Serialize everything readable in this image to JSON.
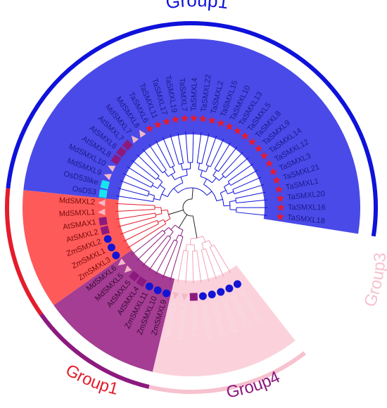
{
  "colors": {
    "g1_blue": "#4a4ae8",
    "g1_blue_arc": "#0f12d9",
    "g1_red": "#ff5a5a",
    "g1_red_arc": "#e41c2b",
    "g4_purple": "#a43d93",
    "g4_arc": "#8c1a7e",
    "g3_pink": "#fbd2dc",
    "g3_arc": "#f7c2cf",
    "star": "#e8192c",
    "triangle": "#f4b8c6",
    "square": "#8c1a7e",
    "circle": "#1414d4",
    "cyan": "#18e4f0"
  },
  "group_labels": {
    "top": "Group1",
    "bottom_left": "Group1",
    "bottom": "Group4",
    "right": "Group3"
  },
  "leaves": [
    {
      "name": "TaSMXL18",
      "marker": "star"
    },
    {
      "name": "TaSMXL16",
      "marker": "star"
    },
    {
      "name": "TaSMXL20",
      "marker": "star"
    },
    {
      "name": "TaSMXL1",
      "marker": "star"
    },
    {
      "name": "TaSMXL21",
      "marker": "star"
    },
    {
      "name": "TaSMXL3",
      "marker": "star"
    },
    {
      "name": "TaSMXL12",
      "marker": "star"
    },
    {
      "name": "TaSMXL14",
      "marker": "star"
    },
    {
      "name": "TaSMXL9",
      "marker": "star"
    },
    {
      "name": "TaSMXL8",
      "marker": "star"
    },
    {
      "name": "TaSMXL5",
      "marker": "star"
    },
    {
      "name": "TaSMXL13",
      "marker": "star"
    },
    {
      "name": "TaSMXL10",
      "marker": "star"
    },
    {
      "name": "TaSMXL15",
      "marker": "star"
    },
    {
      "name": "TaSMXL2",
      "marker": "star"
    },
    {
      "name": "TaSMXL22",
      "marker": "star"
    },
    {
      "name": "TaSMXL4",
      "marker": "star"
    },
    {
      "name": "TaSMXL7",
      "marker": "star"
    },
    {
      "name": "TaSMXL19",
      "marker": "star"
    },
    {
      "name": "TaSMXL17",
      "marker": "star"
    },
    {
      "name": "TaSMXL11",
      "marker": "star"
    },
    {
      "name": "TaSMXL6",
      "marker": "star"
    },
    {
      "name": "MdSMXL8",
      "marker": "triangle"
    },
    {
      "name": "MdSMXL7",
      "marker": "triangle"
    },
    {
      "name": "AtSMXL7",
      "marker": "square"
    },
    {
      "name": "AtSMXL6",
      "marker": "square"
    },
    {
      "name": "AtSMXL8",
      "marker": "square"
    },
    {
      "name": "MdSMXL10",
      "marker": "triangle"
    },
    {
      "name": "MdSMXL9",
      "marker": "triangle"
    },
    {
      "name": "OsD53like",
      "marker": "cyan"
    },
    {
      "name": "OsD53",
      "marker": "cyan"
    },
    {
      "name": "MdSMXL2",
      "marker": "triangle"
    },
    {
      "name": "MdSMXL1",
      "marker": "triangle"
    },
    {
      "name": "AtSMAX1",
      "marker": "square"
    },
    {
      "name": "AtSMXL2",
      "marker": "square"
    },
    {
      "name": "ZmSMXL2",
      "marker": "circle"
    },
    {
      "name": "ZmSMXL1",
      "marker": "circle"
    },
    {
      "name": "ZmSMXL3",
      "marker": "circle"
    },
    {
      "name": "MdSMXL6",
      "marker": "triangle"
    },
    {
      "name": "MdSMXL5",
      "marker": "triangle"
    },
    {
      "name": "AtSMXL5",
      "marker": "square"
    },
    {
      "name": "AtSMXL4",
      "marker": "square"
    },
    {
      "name": "ZmSMXL11",
      "marker": "circle"
    },
    {
      "name": "ZmSMXL10",
      "marker": "circle"
    },
    {
      "name": "ZmSMXL9",
      "marker": "circle"
    },
    {
      "name": "MdSMXL4",
      "marker": "triangle"
    },
    {
      "name": "MdSMXL3",
      "marker": "triangle"
    },
    {
      "name": "AtSMXL3",
      "marker": "square"
    },
    {
      "name": "ZmSMXL8",
      "marker": "circle"
    },
    {
      "name": "ZmSMXL6",
      "marker": "circle"
    },
    {
      "name": "ZmSMXL4",
      "marker": "circle"
    },
    {
      "name": "ZmSMXL7",
      "marker": "circle"
    },
    {
      "name": "ZmSMXL5",
      "marker": "circle"
    }
  ]
}
